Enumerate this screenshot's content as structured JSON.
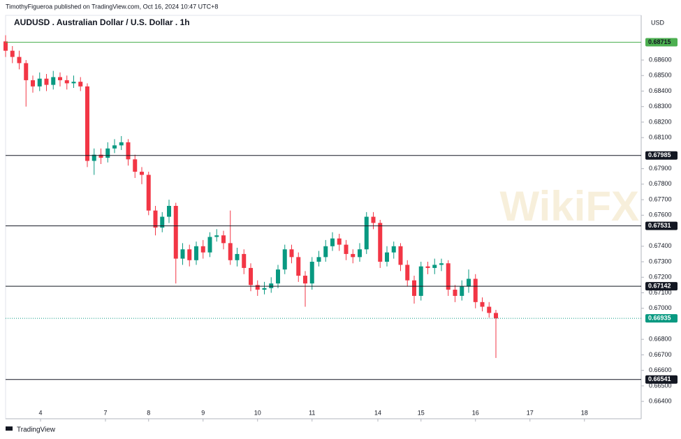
{
  "header": "TimothyFigueroa published on TradingView.com, Oct 16, 2024 10:47 UTC+8",
  "footer": "TradingView",
  "watermark": "WikiFX",
  "chart_data": {
    "type": "candlestick",
    "title": "AUDUSD . Australian Dollar / U.S. Dollar . 1h",
    "currency": "USD",
    "up_color": "#089981",
    "down_color": "#f23645",
    "x": [
      0,
      3,
      6,
      9,
      12,
      15,
      18,
      21,
      24,
      27,
      30,
      33,
      36,
      39,
      42,
      45,
      48,
      51,
      54,
      57,
      60,
      63,
      66,
      69,
      72,
      75,
      78,
      81,
      84,
      87,
      90,
      93,
      96,
      99,
      102,
      105,
      108,
      111,
      114,
      117,
      120,
      123,
      126,
      129,
      132,
      135,
      138,
      141,
      144,
      147,
      150,
      153,
      156,
      159,
      162,
      165,
      168,
      171,
      174,
      177,
      180,
      183,
      186,
      189,
      192,
      195,
      198,
      201,
      204,
      207,
      210,
      213,
      216
    ],
    "open": [
      0.6872,
      0.6866,
      0.6862,
      0.6858,
      0.6847,
      0.6843,
      0.6848,
      0.6844,
      0.6849,
      0.6847,
      0.6845,
      0.6846,
      0.6843,
      0.6795,
      0.6799,
      0.6797,
      0.6803,
      0.6805,
      0.6807,
      0.6796,
      0.6788,
      0.6786,
      0.6763,
      0.6752,
      0.6759,
      0.6766,
      0.6732,
      0.6738,
      0.6731,
      0.674,
      0.6736,
      0.6746,
      0.6747,
      0.6742,
      0.6731,
      0.6735,
      0.6726,
      0.6715,
      0.6712,
      0.6713,
      0.6716,
      0.6725,
      0.6738,
      0.6733,
      0.6721,
      0.6716,
      0.673,
      0.6733,
      0.674,
      0.6745,
      0.6741,
      0.6735,
      0.6733,
      0.6738,
      0.6759,
      0.6755,
      0.673,
      0.6736,
      0.674,
      0.6728,
      0.6718,
      0.6708,
      0.6727,
      0.6726,
      0.6728,
      0.6729,
      0.6712,
      0.6708,
      0.6714,
      0.6719,
      0.6704,
      0.6701,
      0.6697
    ],
    "high": [
      0.6876,
      0.6869,
      0.6866,
      0.686,
      0.685,
      0.6852,
      0.6851,
      0.6853,
      0.6852,
      0.685,
      0.685,
      0.6849,
      0.6845,
      0.6803,
      0.6803,
      0.6807,
      0.6809,
      0.6811,
      0.6809,
      0.6799,
      0.6791,
      0.6788,
      0.6766,
      0.6762,
      0.677,
      0.6768,
      0.6742,
      0.6741,
      0.6743,
      0.6744,
      0.6749,
      0.6751,
      0.675,
      0.6763,
      0.6739,
      0.6738,
      0.6729,
      0.6718,
      0.6717,
      0.672,
      0.6728,
      0.6741,
      0.6741,
      0.6736,
      0.6724,
      0.6733,
      0.6737,
      0.6744,
      0.6749,
      0.6748,
      0.6744,
      0.6738,
      0.6742,
      0.6762,
      0.6762,
      0.6757,
      0.674,
      0.6743,
      0.6742,
      0.6731,
      0.6721,
      0.673,
      0.673,
      0.6732,
      0.6732,
      0.6731,
      0.6715,
      0.6718,
      0.6725,
      0.6722,
      0.6707,
      0.6704,
      0.6699
    ],
    "low": [
      0.6862,
      0.6858,
      0.6854,
      0.683,
      0.6839,
      0.684,
      0.684,
      0.6841,
      0.6843,
      0.6841,
      0.6842,
      0.684,
      0.6791,
      0.6786,
      0.6793,
      0.6794,
      0.68,
      0.6802,
      0.6792,
      0.6784,
      0.678,
      0.676,
      0.6747,
      0.6749,
      0.6755,
      0.6716,
      0.6728,
      0.6727,
      0.6728,
      0.6732,
      0.6733,
      0.6743,
      0.6738,
      0.6728,
      0.6727,
      0.6722,
      0.6711,
      0.6708,
      0.6709,
      0.671,
      0.6713,
      0.6722,
      0.6729,
      0.6717,
      0.6701,
      0.6712,
      0.6727,
      0.673,
      0.6737,
      0.6737,
      0.6731,
      0.6729,
      0.673,
      0.6735,
      0.6751,
      0.6726,
      0.6727,
      0.6732,
      0.6724,
      0.6714,
      0.6703,
      0.6705,
      0.6722,
      0.6722,
      0.6724,
      0.6708,
      0.6704,
      0.6705,
      0.671,
      0.67,
      0.6698,
      0.6694,
      0.6668
    ],
    "close": [
      0.6866,
      0.6862,
      0.6858,
      0.6847,
      0.6843,
      0.6848,
      0.6844,
      0.6849,
      0.6847,
      0.6845,
      0.6846,
      0.6843,
      0.6795,
      0.6799,
      0.6797,
      0.6803,
      0.6805,
      0.6807,
      0.6796,
      0.6788,
      0.6786,
      0.6763,
      0.6752,
      0.6759,
      0.6766,
      0.6732,
      0.6738,
      0.6731,
      0.674,
      0.6736,
      0.6746,
      0.6747,
      0.6742,
      0.6731,
      0.6735,
      0.6726,
      0.6715,
      0.6712,
      0.6713,
      0.6716,
      0.6725,
      0.6738,
      0.6733,
      0.6721,
      0.6716,
      0.673,
      0.6733,
      0.674,
      0.6745,
      0.6741,
      0.6735,
      0.6733,
      0.6738,
      0.6759,
      0.6755,
      0.673,
      0.6736,
      0.674,
      0.6728,
      0.6718,
      0.6708,
      0.6727,
      0.6726,
      0.6728,
      0.6729,
      0.6712,
      0.6708,
      0.6714,
      0.6719,
      0.6704,
      0.6701,
      0.6697,
      0.66935
    ],
    "xlim": [
      0,
      280
    ],
    "xticks": [
      {
        "value": 15.4,
        "label": "4"
      },
      {
        "value": 44,
        "label": "7"
      },
      {
        "value": 63,
        "label": "8"
      },
      {
        "value": 87,
        "label": "9"
      },
      {
        "value": 111,
        "label": "10"
      },
      {
        "value": 135,
        "label": "11"
      },
      {
        "value": 164,
        "label": "14"
      },
      {
        "value": 183,
        "label": "15"
      },
      {
        "value": 207,
        "label": "16"
      },
      {
        "value": 231,
        "label": "17"
      },
      {
        "value": 255,
        "label": "18"
      }
    ],
    "ylim": [
      0.66378,
      0.68843
    ],
    "yticks": [
      {
        "value": 0.686,
        "label": "0.68600"
      },
      {
        "value": 0.685,
        "label": "0.68500"
      },
      {
        "value": 0.684,
        "label": "0.68400"
      },
      {
        "value": 0.683,
        "label": "0.68300"
      },
      {
        "value": 0.682,
        "label": "0.68200"
      },
      {
        "value": 0.681,
        "label": "0.68100"
      },
      {
        "value": 0.679,
        "label": "0.67900"
      },
      {
        "value": 0.678,
        "label": "0.67800"
      },
      {
        "value": 0.677,
        "label": "0.67700"
      },
      {
        "value": 0.676,
        "label": "0.67600"
      },
      {
        "value": 0.674,
        "label": "0.67400"
      },
      {
        "value": 0.673,
        "label": "0.67300"
      },
      {
        "value": 0.672,
        "label": "0.67200"
      },
      {
        "value": 0.671,
        "label": "0.67100"
      },
      {
        "value": 0.67,
        "label": "0.67000"
      },
      {
        "value": 0.668,
        "label": "0.66800"
      },
      {
        "value": 0.667,
        "label": "0.66700"
      },
      {
        "value": 0.666,
        "label": "0.66600"
      },
      {
        "value": 0.665,
        "label": "0.66500"
      },
      {
        "value": 0.664,
        "label": "0.66400"
      }
    ],
    "levels": [
      {
        "value": 0.68715,
        "color": "#4caf50"
      },
      {
        "value": 0.67985,
        "color": "#131722"
      },
      {
        "value": 0.67531,
        "color": "#131722"
      },
      {
        "value": 0.67142,
        "color": "#131722"
      },
      {
        "value": 0.66541,
        "color": "#131722"
      }
    ],
    "last_price": {
      "value": 0.66935,
      "color": "#089981"
    }
  }
}
